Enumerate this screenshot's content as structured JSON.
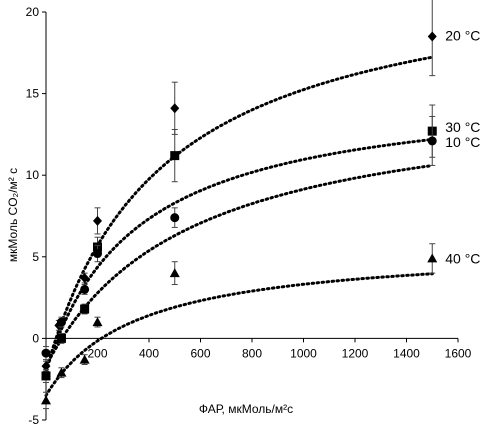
{
  "chart_data": {
    "type": "scatter",
    "xlabel": "ФАР, мкМоль/м²с",
    "ylabel": "мкМоль CO₂/м² с",
    "xlim": [
      0,
      1600
    ],
    "ylim": [
      -5,
      20
    ],
    "xticks": [
      0,
      200,
      400,
      600,
      800,
      1000,
      1200,
      1400,
      1600
    ],
    "yticks": [
      -5,
      0,
      5,
      10,
      15,
      20
    ],
    "grid": false,
    "legend": "none",
    "series": [
      {
        "name": "20 °C",
        "marker": "diamond",
        "points": [
          {
            "x": 0,
            "y": -1.7,
            "err": 0.3
          },
          {
            "x": 50,
            "y": 0.8,
            "err": 0.3
          },
          {
            "x": 150,
            "y": 3.7,
            "err": 0.3
          },
          {
            "x": 200,
            "y": 7.2,
            "err": 0.8
          },
          {
            "x": 500,
            "y": 14.1,
            "err": 1.6
          },
          {
            "x": 1500,
            "y": 18.5,
            "err": 2.4
          }
        ],
        "fit": {
          "pmax": 25.0,
          "k": 450,
          "r": 2.0
        }
      },
      {
        "name": "30 °C",
        "marker": "square",
        "points": [
          {
            "x": 0,
            "y": -2.3,
            "err": 0.4
          },
          {
            "x": 60,
            "y": 0.0,
            "err": 0.3
          },
          {
            "x": 150,
            "y": 1.8,
            "err": 0.3
          },
          {
            "x": 200,
            "y": 5.6,
            "err": 0.6
          },
          {
            "x": 500,
            "y": 11.2,
            "err": 1.6
          },
          {
            "x": 1500,
            "y": 12.7,
            "err": 1.6
          }
        ],
        "fit": {
          "pmax": 17.5,
          "k": 350,
          "r": 2.0
        }
      },
      {
        "name": "10 °C",
        "marker": "circle",
        "points": [
          {
            "x": 0,
            "y": -0.9,
            "err": 0.4
          },
          {
            "x": 60,
            "y": 1.0,
            "err": 0.3
          },
          {
            "x": 150,
            "y": 3.0,
            "err": 0.3
          },
          {
            "x": 200,
            "y": 5.2,
            "err": 0.5
          },
          {
            "x": 500,
            "y": 7.4,
            "err": 0.6
          },
          {
            "x": 1500,
            "y": 12.1,
            "err": 1.5
          }
        ],
        "fit": {
          "pmax": 16.8,
          "k": 550,
          "r": 1.7
        }
      },
      {
        "name": "40 °C",
        "marker": "triangle",
        "points": [
          {
            "x": 0,
            "y": -3.8,
            "err": 0.5
          },
          {
            "x": 60,
            "y": -2.1,
            "err": 0.3
          },
          {
            "x": 150,
            "y": -1.3,
            "err": 0.3
          },
          {
            "x": 200,
            "y": 1.0,
            "err": 0.3
          },
          {
            "x": 500,
            "y": 4.0,
            "err": 0.7
          },
          {
            "x": 1500,
            "y": 4.9,
            "err": 0.9
          }
        ],
        "fit": {
          "pmax": 9.2,
          "k": 350,
          "r": 3.5
        }
      }
    ]
  }
}
